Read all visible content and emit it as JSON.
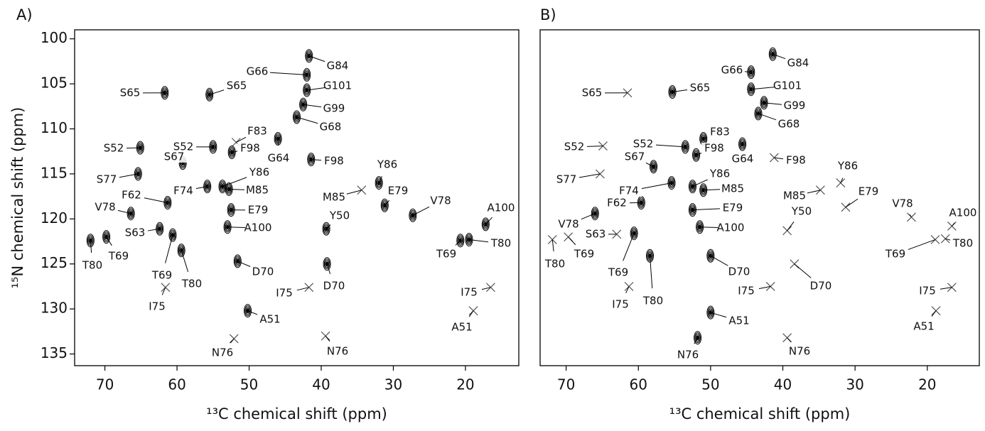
{
  "chart_data": [
    {
      "type": "nmr",
      "panel_label": "A)",
      "xlabel": "¹³C chemical shift (ppm)",
      "ylabel": "¹⁵N chemical shift (ppm)",
      "xlim": [
        74.2,
        12.6
      ],
      "ylim": [
        99.0,
        136.3
      ],
      "xticks": [
        70,
        60,
        50,
        40,
        30,
        20
      ],
      "yticks": [
        100,
        105,
        110,
        115,
        120,
        125,
        130,
        135
      ],
      "peaks": [
        {
          "label": "G84",
          "x": 41.7,
          "y": 101.9,
          "marker": "contour"
        },
        {
          "label": "G66",
          "x": 42.0,
          "y": 104.0,
          "marker": "contour"
        },
        {
          "label": "G101",
          "x": 42.0,
          "y": 105.7,
          "marker": "contour"
        },
        {
          "label": "G99",
          "x": 42.5,
          "y": 107.3,
          "marker": "contour"
        },
        {
          "label": "G68",
          "x": 43.4,
          "y": 108.7,
          "marker": "contour"
        },
        {
          "label": "S65",
          "x": 61.7,
          "y": 106.0,
          "marker": "contour"
        },
        {
          "label": "S65",
          "x": 55.5,
          "y": 106.2,
          "marker": "contour"
        },
        {
          "label": "F83",
          "x": 51.8,
          "y": 111.5,
          "marker": "cross"
        },
        {
          "label": "F98",
          "x": 52.4,
          "y": 112.6,
          "marker": "contour"
        },
        {
          "label": "S52",
          "x": 55.0,
          "y": 112.0,
          "marker": "contour"
        },
        {
          "label": "G64",
          "x": 46.0,
          "y": 111.1,
          "marker": "contour"
        },
        {
          "label": "S67",
          "x": 59.2,
          "y": 113.8,
          "marker": "contour"
        },
        {
          "label": "F98",
          "x": 41.4,
          "y": 113.4,
          "marker": "contour"
        },
        {
          "label": "Y86",
          "x": 53.7,
          "y": 116.4,
          "marker": "contour"
        },
        {
          "label": "M85",
          "x": 52.8,
          "y": 116.7,
          "marker": "contour"
        },
        {
          "label": "E79",
          "x": 52.5,
          "y": 119.0,
          "marker": "contour"
        },
        {
          "label": "A100",
          "x": 53.0,
          "y": 120.9,
          "marker": "contour"
        },
        {
          "label": "F74",
          "x": 55.8,
          "y": 116.4,
          "marker": "contour"
        },
        {
          "label": "F62",
          "x": 61.3,
          "y": 118.2,
          "marker": "contour"
        },
        {
          "label": "S77",
          "x": 65.4,
          "y": 115.0,
          "marker": "contour"
        },
        {
          "label": "S52",
          "x": 65.1,
          "y": 112.1,
          "marker": "contour"
        },
        {
          "label": "V78",
          "x": 66.4,
          "y": 119.4,
          "marker": "contour"
        },
        {
          "label": "S63",
          "x": 62.4,
          "y": 121.1,
          "marker": "contour"
        },
        {
          "label": "T80",
          "x": 72.0,
          "y": 122.4,
          "marker": "contour"
        },
        {
          "label": "T69",
          "x": 69.8,
          "y": 122.0,
          "marker": "contour"
        },
        {
          "label": "T69",
          "x": 60.6,
          "y": 121.8,
          "marker": "contour"
        },
        {
          "label": "T80",
          "x": 59.4,
          "y": 123.5,
          "marker": "contour"
        },
        {
          "label": "I75",
          "x": 61.6,
          "y": 127.6,
          "marker": "cross"
        },
        {
          "label": "D70",
          "x": 51.6,
          "y": 124.7,
          "marker": "contour"
        },
        {
          "label": "I75",
          "x": 41.7,
          "y": 127.6,
          "marker": "cross"
        },
        {
          "label": "D70",
          "x": 39.2,
          "y": 125.0,
          "marker": "contour"
        },
        {
          "label": "Y50",
          "x": 39.3,
          "y": 121.1,
          "marker": "contour"
        },
        {
          "label": "M85",
          "x": 34.4,
          "y": 116.8,
          "marker": "cross"
        },
        {
          "label": "Y86",
          "x": 32.0,
          "y": 116.0,
          "marker": "contour"
        },
        {
          "label": "E79",
          "x": 31.2,
          "y": 118.5,
          "marker": "contour"
        },
        {
          "label": "V78",
          "x": 27.3,
          "y": 119.6,
          "marker": "contour"
        },
        {
          "label": "T69",
          "x": 20.7,
          "y": 122.4,
          "marker": "contour"
        },
        {
          "label": "T80",
          "x": 19.5,
          "y": 122.3,
          "marker": "contour"
        },
        {
          "label": "A100",
          "x": 17.2,
          "y": 120.6,
          "marker": "contour"
        },
        {
          "label": "I75",
          "x": 16.5,
          "y": 127.6,
          "marker": "cross"
        },
        {
          "label": "A51",
          "x": 18.9,
          "y": 130.2,
          "marker": "cross"
        },
        {
          "label": "A51",
          "x": 50.2,
          "y": 130.2,
          "marker": "contour"
        },
        {
          "label": "N76",
          "x": 52.1,
          "y": 133.3,
          "marker": "cross"
        },
        {
          "label": "N76",
          "x": 39.4,
          "y": 133.0,
          "marker": "cross"
        }
      ]
    },
    {
      "type": "nmr",
      "panel_label": "B)",
      "xlabel": "¹³C chemical shift (ppm)",
      "xlim": [
        73.6,
        12.8
      ],
      "ylim": [
        99.0,
        136.3
      ],
      "xticks": [
        70,
        60,
        50,
        40,
        30,
        20
      ],
      "peaks": [
        {
          "label": "G84",
          "x": 41.4,
          "y": 101.7,
          "marker": "contour"
        },
        {
          "label": "G66",
          "x": 44.4,
          "y": 103.7,
          "marker": "contour"
        },
        {
          "label": "G101",
          "x": 44.4,
          "y": 105.6,
          "marker": "contour"
        },
        {
          "label": "G99",
          "x": 42.6,
          "y": 107.1,
          "marker": "contour"
        },
        {
          "label": "G68",
          "x": 43.4,
          "y": 108.3,
          "marker": "contour"
        },
        {
          "label": "S65",
          "x": 61.5,
          "y": 106.0,
          "marker": "cross"
        },
        {
          "label": "S65",
          "x": 55.3,
          "y": 105.9,
          "marker": "contour"
        },
        {
          "label": "F83",
          "x": 51.0,
          "y": 111.1,
          "marker": "contour"
        },
        {
          "label": "S52",
          "x": 53.5,
          "y": 112.0,
          "marker": "contour"
        },
        {
          "label": "F98",
          "x": 52.0,
          "y": 112.9,
          "marker": "contour"
        },
        {
          "label": "G64",
          "x": 45.6,
          "y": 111.7,
          "marker": "contour"
        },
        {
          "label": "S52",
          "x": 64.9,
          "y": 111.9,
          "marker": "cross"
        },
        {
          "label": "S67",
          "x": 57.9,
          "y": 114.2,
          "marker": "contour"
        },
        {
          "label": "F98",
          "x": 41.2,
          "y": 113.2,
          "marker": "cross"
        },
        {
          "label": "S77",
          "x": 65.3,
          "y": 115.0,
          "marker": "cross"
        },
        {
          "label": "F62",
          "x": 59.6,
          "y": 118.2,
          "marker": "contour"
        },
        {
          "label": "F74",
          "x": 55.4,
          "y": 116.0,
          "marker": "contour"
        },
        {
          "label": "Y86",
          "x": 52.5,
          "y": 116.4,
          "marker": "contour"
        },
        {
          "label": "M85",
          "x": 51.0,
          "y": 116.8,
          "marker": "contour"
        },
        {
          "label": "E79",
          "x": 52.5,
          "y": 119.0,
          "marker": "contour"
        },
        {
          "label": "A100",
          "x": 51.5,
          "y": 120.9,
          "marker": "contour"
        },
        {
          "label": "V78",
          "x": 66.0,
          "y": 119.4,
          "marker": "contour"
        },
        {
          "label": "S63",
          "x": 63.0,
          "y": 121.7,
          "marker": "cross"
        },
        {
          "label": "T80",
          "x": 71.9,
          "y": 122.3,
          "marker": "cross"
        },
        {
          "label": "T69",
          "x": 69.7,
          "y": 122.0,
          "marker": "cross"
        },
        {
          "label": "T69",
          "x": 60.6,
          "y": 121.6,
          "marker": "contour"
        },
        {
          "label": "T80",
          "x": 58.4,
          "y": 124.1,
          "marker": "contour"
        },
        {
          "label": "I75",
          "x": 61.3,
          "y": 127.5,
          "marker": "cross"
        },
        {
          "label": "D70",
          "x": 50.0,
          "y": 124.1,
          "marker": "contour"
        },
        {
          "label": "I75",
          "x": 41.7,
          "y": 127.5,
          "marker": "cross"
        },
        {
          "label": "D70",
          "x": 38.4,
          "y": 125.0,
          "marker": "cross"
        },
        {
          "label": "Y50",
          "x": 39.4,
          "y": 121.3,
          "marker": "cross"
        },
        {
          "label": "M85",
          "x": 34.8,
          "y": 116.8,
          "marker": "cross"
        },
        {
          "label": "Y86",
          "x": 32.0,
          "y": 116.0,
          "marker": "cross"
        },
        {
          "label": "E79",
          "x": 31.3,
          "y": 118.7,
          "marker": "cross"
        },
        {
          "label": "V78",
          "x": 22.2,
          "y": 119.8,
          "marker": "cross"
        },
        {
          "label": "T69",
          "x": 18.9,
          "y": 122.3,
          "marker": "cross"
        },
        {
          "label": "T80",
          "x": 17.5,
          "y": 122.2,
          "marker": "cross"
        },
        {
          "label": "A100",
          "x": 16.6,
          "y": 120.8,
          "marker": "cross"
        },
        {
          "label": "I75",
          "x": 16.6,
          "y": 127.6,
          "marker": "cross"
        },
        {
          "label": "A51",
          "x": 18.8,
          "y": 130.2,
          "marker": "cross"
        },
        {
          "label": "A51",
          "x": 50.0,
          "y": 130.4,
          "marker": "contour"
        },
        {
          "label": "N76",
          "x": 51.8,
          "y": 133.2,
          "marker": "contour"
        },
        {
          "label": "N76",
          "x": 39.4,
          "y": 133.2,
          "marker": "cross"
        }
      ]
    }
  ]
}
